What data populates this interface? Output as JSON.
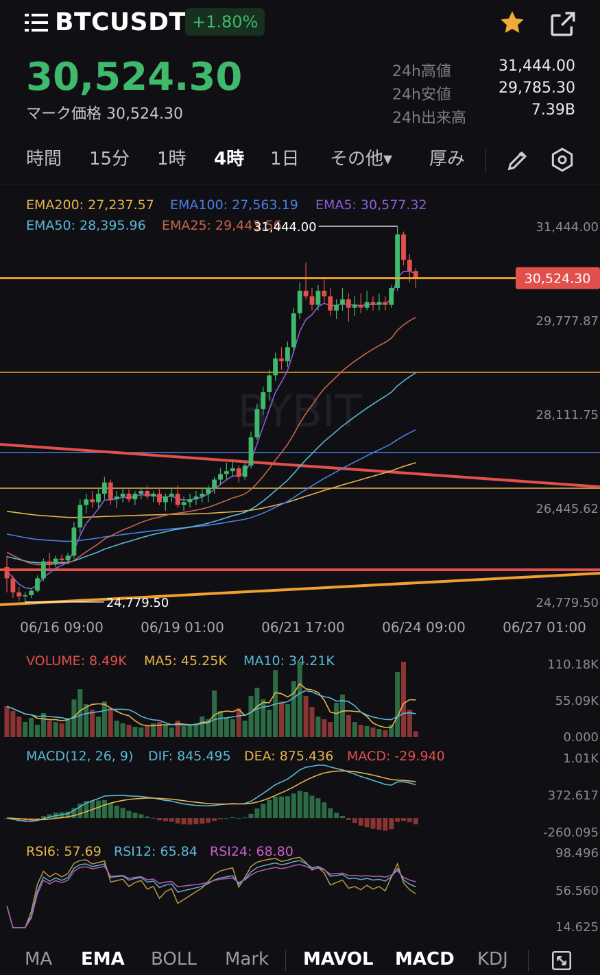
{
  "header": {
    "symbol": "BTCUSDT",
    "change_pct": "+1.80%",
    "last_price": "30,524.30",
    "mark_label": "マーク価格",
    "mark_price": "30,524.30",
    "stats": [
      {
        "label": "24h高値",
        "value": "31,444.00"
      },
      {
        "label": "24h安値",
        "value": "29,785.30"
      },
      {
        "label": "24h出来高",
        "value": "7.39B"
      }
    ]
  },
  "intervals": {
    "items": [
      "時間",
      "15分",
      "1時",
      "4時",
      "1日",
      "その他▾",
      "厚み"
    ],
    "active": "4時"
  },
  "icons": {
    "menu": "menu-lines-icon",
    "favorite": "star-icon",
    "share": "share-icon",
    "draw": "pencil-icon",
    "settings": "hexagon-settings-icon",
    "fullscreen": "expand-icon"
  },
  "colors": {
    "up": "#3fb96c",
    "down": "#e2504c",
    "ema200": "#e8b44b",
    "ema100": "#4a7fe6",
    "ema5": "#8a5fd6",
    "ema50": "#5ab8d6",
    "ema25": "#c7644e",
    "price_line": "#f0a030",
    "trend_red": "#e2504c"
  },
  "ema_legend": {
    "ema200": "EMA200: 27,237.57",
    "ema100": "EMA100: 27,563.19",
    "ema5": "EMA5: 30,577.32",
    "ema50": "EMA50: 28,395.96",
    "ema25": "EMA25: 29,443.56"
  },
  "chart_data": [
    {
      "type": "candlestick",
      "title": "BTCUSDT 4時",
      "y_ticks": [
        "31,444.00",
        "29,777.87",
        "28,111.75",
        "26,445.62",
        "24,779.50"
      ],
      "x_ticks": [
        "06/16 09:00",
        "06/19 01:00",
        "06/21 17:00",
        "06/24 09:00",
        "06/27 01:00"
      ],
      "ylim": [
        24779.5,
        31444.0
      ],
      "current_price_label": "30,524.30",
      "high_marker": "31,444.00",
      "low_marker": "24,779.50",
      "watermark": "BYBIT",
      "candles": [
        [
          25400,
          25600,
          24950,
          25200
        ],
        [
          25200,
          25250,
          24850,
          24950
        ],
        [
          24950,
          25050,
          24800,
          24880
        ],
        [
          24880,
          24950,
          24779.5,
          24900
        ],
        [
          24900,
          25020,
          24850,
          24980
        ],
        [
          24980,
          25250,
          24950,
          25200
        ],
        [
          25200,
          25550,
          25150,
          25500
        ],
        [
          25500,
          25650,
          25380,
          25450
        ],
        [
          25450,
          25600,
          25400,
          25550
        ],
        [
          25550,
          25620,
          25480,
          25520
        ],
        [
          25520,
          25650,
          25450,
          25600
        ],
        [
          25600,
          26200,
          25550,
          26100
        ],
        [
          26100,
          26600,
          26000,
          26500
        ],
        [
          26500,
          26700,
          26350,
          26600
        ],
        [
          26600,
          26750,
          26450,
          26550
        ],
        [
          26550,
          26800,
          26450,
          26700
        ],
        [
          26700,
          27000,
          26600,
          26900
        ],
        [
          26900,
          26950,
          26500,
          26600
        ],
        [
          26600,
          26750,
          26450,
          26650
        ],
        [
          26650,
          26800,
          26550,
          26700
        ],
        [
          26700,
          26780,
          26550,
          26600
        ],
        [
          26600,
          26750,
          26500,
          26700
        ],
        [
          26700,
          26820,
          26600,
          26750
        ],
        [
          26750,
          26850,
          26600,
          26650
        ],
        [
          26650,
          26750,
          26550,
          26700
        ],
        [
          26700,
          26800,
          26500,
          26550
        ],
        [
          26550,
          26700,
          26400,
          26650
        ],
        [
          26650,
          26800,
          26550,
          26700
        ],
        [
          26700,
          26850,
          26450,
          26500
        ],
        [
          26500,
          26650,
          26400,
          26550
        ],
        [
          26550,
          26700,
          26450,
          26600
        ],
        [
          26600,
          26750,
          26500,
          26650
        ],
        [
          26650,
          26800,
          26550,
          26700
        ],
        [
          26700,
          26850,
          26550,
          26800
        ],
        [
          26800,
          27000,
          26700,
          26950
        ],
        [
          26950,
          27150,
          26850,
          27050
        ],
        [
          27050,
          27250,
          26950,
          27100
        ],
        [
          27100,
          27300,
          27000,
          27150
        ],
        [
          27150,
          27200,
          26900,
          27000
        ],
        [
          27000,
          27250,
          26950,
          27200
        ],
        [
          27200,
          27800,
          27150,
          27700
        ],
        [
          27700,
          28300,
          27650,
          28200
        ],
        [
          28200,
          28600,
          28100,
          28500
        ],
        [
          28500,
          28900,
          28350,
          28800
        ],
        [
          28800,
          29200,
          28700,
          29100
        ],
        [
          29100,
          29300,
          28900,
          29050
        ],
        [
          29050,
          29400,
          28950,
          29300
        ],
        [
          29300,
          30000,
          29200,
          29900
        ],
        [
          29900,
          30450,
          29800,
          30300
        ],
        [
          30300,
          30800,
          30150,
          30200
        ],
        [
          30200,
          30350,
          29950,
          30050
        ],
        [
          30050,
          30400,
          29950,
          30300
        ],
        [
          30300,
          30500,
          30100,
          30200
        ],
        [
          30200,
          30350,
          29850,
          29950
        ],
        [
          29950,
          30150,
          29800,
          30050
        ],
        [
          30050,
          30350,
          29950,
          30150
        ],
        [
          30150,
          30250,
          29750,
          30000
        ],
        [
          30000,
          30200,
          29850,
          30050
        ],
        [
          30050,
          30250,
          29900,
          30000
        ],
        [
          30000,
          30300,
          29950,
          30100
        ],
        [
          30100,
          30200,
          29950,
          30050
        ],
        [
          30050,
          30250,
          29950,
          30100
        ],
        [
          30100,
          30200,
          29950,
          30050
        ],
        [
          30050,
          30400,
          30000,
          30350
        ],
        [
          30350,
          31444,
          30300,
          31300
        ],
        [
          31300,
          31350,
          30750,
          30850
        ],
        [
          30850,
          30950,
          30450,
          30650
        ],
        [
          30650,
          30700,
          30350,
          30524.3
        ]
      ]
    },
    {
      "type": "bar",
      "title": "VOLUME",
      "legend": {
        "volume": "VOLUME: 8.49K",
        "ma5": "MA5: 45.25K",
        "ma10": "MA10: 34.21K"
      },
      "y_ticks": [
        "110.18K",
        "55.09K",
        "0.000"
      ],
      "ylim": [
        0,
        110.18
      ],
      "values": [
        45,
        38,
        30,
        22,
        28,
        18,
        35,
        24,
        22,
        20,
        26,
        55,
        70,
        48,
        40,
        30,
        52,
        42,
        24,
        20,
        18,
        15,
        14,
        16,
        20,
        22,
        18,
        14,
        24,
        16,
        18,
        20,
        30,
        26,
        68,
        38,
        28,
        26,
        42,
        24,
        60,
        72,
        55,
        40,
        98,
        52,
        48,
        82,
        110,
        60,
        44,
        30,
        26,
        22,
        50,
        62,
        32,
        22,
        18,
        16,
        14,
        12,
        10,
        18,
        95,
        110,
        40,
        8.49
      ]
    },
    {
      "type": "line",
      "title": "MACD",
      "legend": {
        "params": "MACD(12, 26, 9)",
        "dif": "DIF: 845.495",
        "dea": "DEA: 875.436",
        "macd": "MACD: -29.940"
      },
      "y_ticks": [
        "1.01K",
        "372.617",
        "-260.095"
      ],
      "ylim": [
        -260.095,
        1010
      ]
    },
    {
      "type": "line",
      "title": "RSI",
      "legend": {
        "rsi6": "RSI6: 57.69",
        "rsi12": "RSI12: 65.84",
        "rsi24": "RSI24: 68.80"
      },
      "y_ticks": [
        "98.496",
        "56.560",
        "14.625"
      ],
      "ylim": [
        14.625,
        98.496
      ]
    }
  ],
  "bottom_tabs": {
    "items": [
      "MA",
      "EMA",
      "BOLL",
      "Mark",
      "MAVOL",
      "MACD",
      "KDJ"
    ],
    "active": [
      "EMA",
      "MAVOL",
      "MACD"
    ]
  }
}
